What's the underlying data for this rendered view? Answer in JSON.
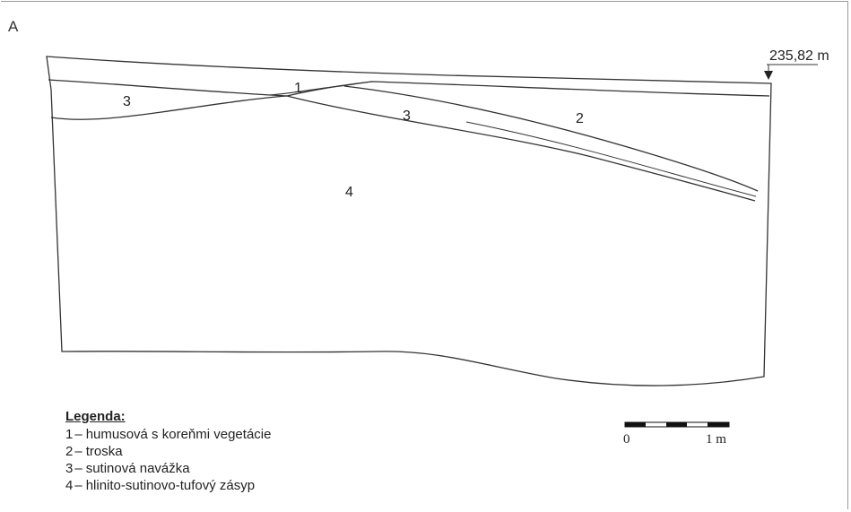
{
  "panel_label": "A",
  "elevation": {
    "label": "235,82 m"
  },
  "units": [
    {
      "id": "1",
      "label": "1",
      "description": "humusová s koreňmi vegetácie"
    },
    {
      "id": "2",
      "label": "2",
      "description": "troska"
    },
    {
      "id": "3",
      "label": "3",
      "description": "sutinová navážka"
    },
    {
      "id": "4",
      "label": "4",
      "description": "hlinito-sutinovo-tufový zásyp"
    }
  ],
  "map_labels": {
    "unit3_left": "3",
    "unit1": "1",
    "unit3_right": "3",
    "unit2": "2",
    "unit4": "4"
  },
  "legend": {
    "title": "Legenda:",
    "dash": "–"
  },
  "scale_bar": {
    "start_label": "0",
    "end_label": "1 m",
    "segments": 5
  },
  "colors": {
    "line": "#333333",
    "text": "#222222",
    "frame": "#9a9a9a"
  }
}
